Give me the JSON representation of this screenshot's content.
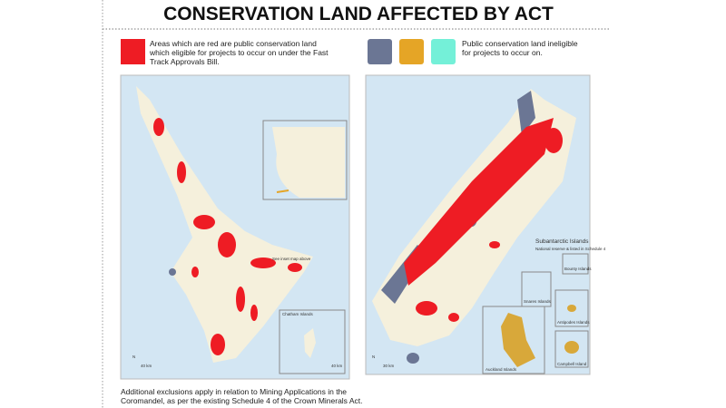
{
  "title": "CONSERVATION LAND AFFECTED BY ACT",
  "legend": {
    "eligible": "Areas which are red are public conservation land which eligible for projects to occur on under the Fast Track Approvals Bill.",
    "ineligible": "Public conservation land ineligible for projects to occur on."
  },
  "north_map": {
    "inset_note": "See inset map above",
    "chatham": "Chatham Islands",
    "north": "N",
    "scale": "40 km",
    "inset_scale": "40 km"
  },
  "south_map": {
    "subantarctic": "Subantarctic Islands",
    "subantarctic_note": "National reserve & listed in Schedule 4",
    "bounty": "Bounty Islands",
    "snares": "Snares Islands",
    "antipodes": "Antipodes Islands",
    "auckland": "Auckland Islands",
    "campbell": "Campbell Island",
    "north": "N",
    "scale": "30 km"
  },
  "footnote": "Additional exclusions apply in relation to Mining Applications in the Coromandel, as per the existing Schedule 4 of the Crown Minerals Act."
}
